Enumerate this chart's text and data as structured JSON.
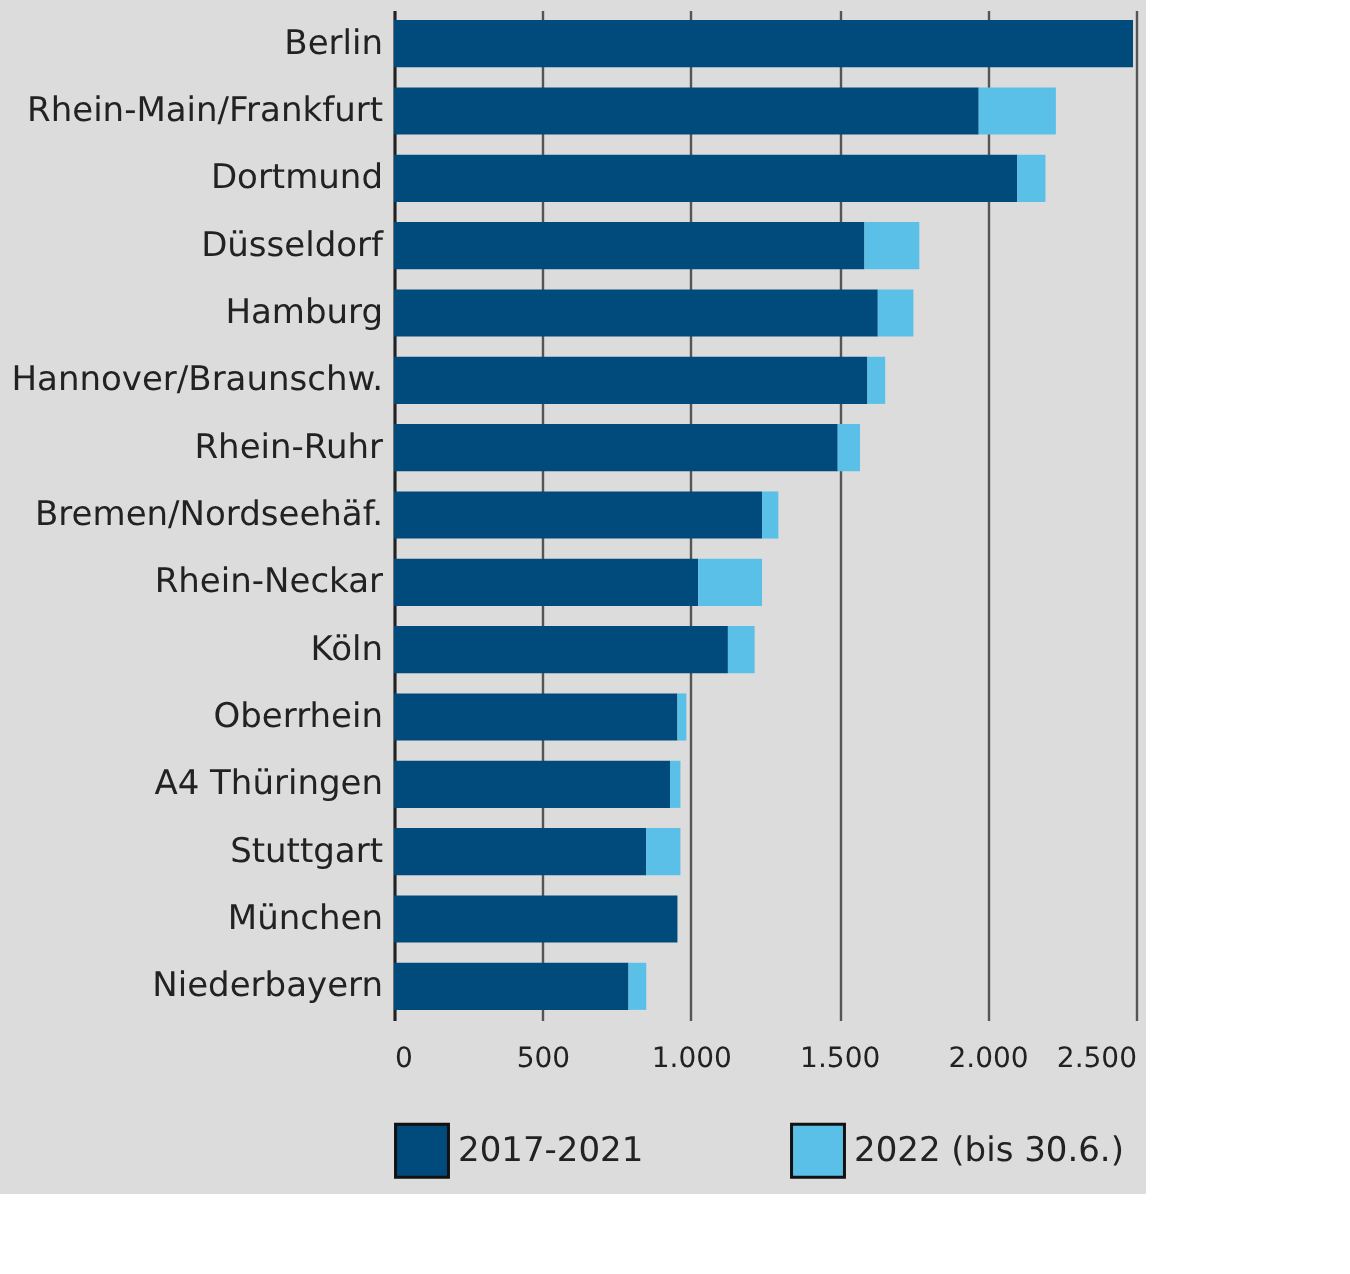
{
  "chart_data": {
    "type": "bar",
    "orientation": "horizontal",
    "stacked": true,
    "categories": [
      "Berlin",
      "Rhein-Main/Frankfurt",
      "Dortmund",
      "Düsseldorf",
      "Hamburg",
      "Hannover/Braunschw.",
      "Rhein-Ruhr",
      "Bremen/Nordseehäf.",
      "Rhein-Neckar",
      "Köln",
      "Oberrhein",
      "A4 Thüringen",
      "Stuttgart",
      "München",
      "Niederbayern"
    ],
    "series": [
      {
        "name": "2017-2021",
        "color": "#004a7c",
        "values": [
          2490,
          1970,
          2100,
          1585,
          1630,
          1595,
          1495,
          1240,
          1025,
          1125,
          955,
          930,
          850,
          955,
          790
        ]
      },
      {
        "name": "2022 (bis 30.6.)",
        "color": "#5bc0e8",
        "values": [
          0,
          260,
          95,
          185,
          120,
          60,
          75,
          55,
          215,
          90,
          30,
          35,
          115,
          0,
          60
        ]
      }
    ],
    "xlim": [
      0,
      2500
    ],
    "xticks": [
      0,
      500,
      {
        "value": 1000,
        "label": "1.000"
      },
      {
        "value": 1500,
        "label": "1.500"
      },
      {
        "value": 2000,
        "label": "2.000"
      },
      {
        "value": 2500,
        "label": "2.500"
      }
    ],
    "grid": "x",
    "legend": "bottom"
  }
}
